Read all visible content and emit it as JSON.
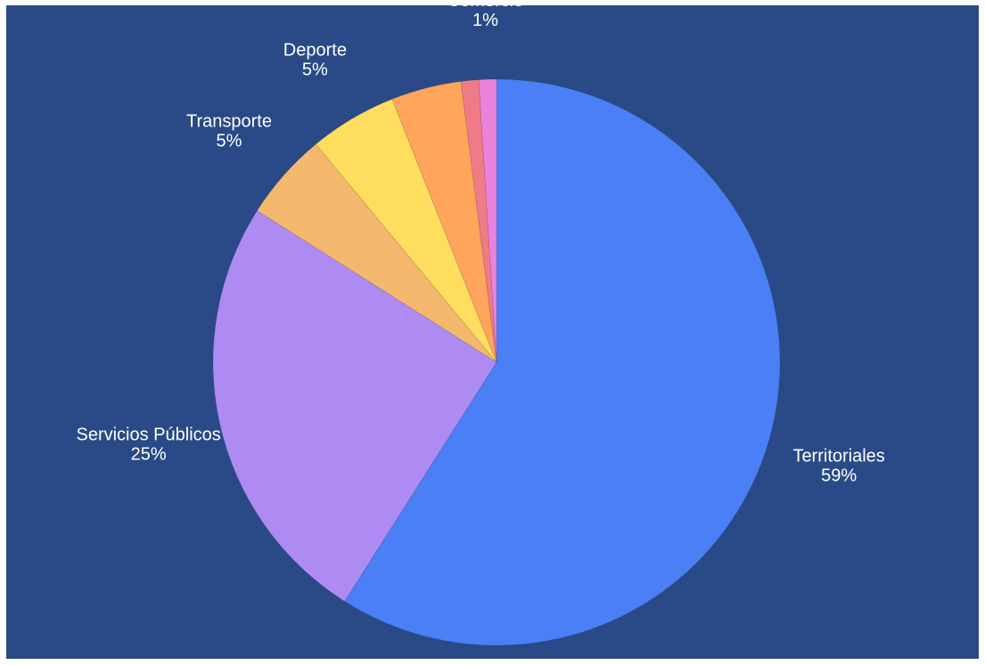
{
  "chart_data": {
    "type": "pie",
    "slices": [
      {
        "label": "Territoriales",
        "value": 59,
        "value_label": "59%",
        "color": "#4a7ff5",
        "show_label": true
      },
      {
        "label": "Servicios Públicos",
        "value": 25,
        "value_label": "25%",
        "color": "#ad8bf3",
        "show_label": true
      },
      {
        "label": "Transporte",
        "value": 5,
        "value_label": "5%",
        "color": "#f3b86e",
        "show_label": true
      },
      {
        "label": "Deporte",
        "value": 5,
        "value_label": "5%",
        "color": "#ffdd5e",
        "show_label": true
      },
      {
        "label": "",
        "value": 4,
        "value_label": "",
        "color": "#ffa55c",
        "show_label": false
      },
      {
        "label": "",
        "value": 1,
        "value_label": "",
        "color": "#f07b86",
        "show_label": false
      },
      {
        "label": "Comercio",
        "value": 1,
        "value_label": "1%",
        "color": "#ea82dc",
        "show_label": true
      }
    ],
    "start_angle_deg": 0,
    "direction": "clockwise",
    "background_color": "#2a4a87",
    "legend": "none"
  }
}
